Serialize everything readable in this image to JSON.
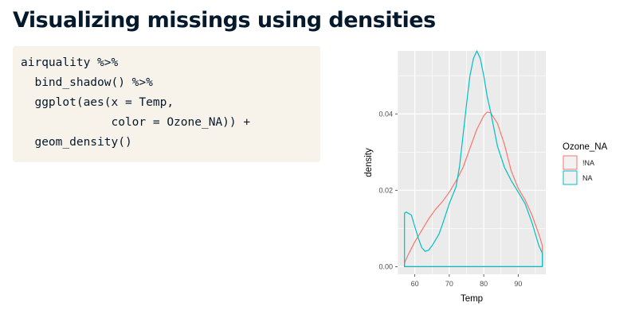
{
  "slide": {
    "title": "Visualizing missings using densities"
  },
  "code": {
    "lines": [
      "airquality %>%",
      "  bind_shadow() %>%",
      "  ggplot(aes(x = Temp,",
      "             color = Ozone_NA)) +",
      "  geom_density()"
    ]
  },
  "chart_data": {
    "type": "line",
    "xlabel": "Temp",
    "ylabel": "density",
    "xlim": [
      55,
      98
    ],
    "ylim": [
      -0.002,
      0.0565
    ],
    "x_ticks": [
      60,
      70,
      80,
      90
    ],
    "x_tick_labels": [
      "60",
      "70",
      "80",
      "90"
    ],
    "y_ticks": [
      0.0,
      0.02,
      0.04
    ],
    "y_tick_labels": [
      "0.00",
      "0.02",
      "0.04"
    ],
    "grid": true,
    "legend": {
      "title": "Ozone_NA",
      "position": "right"
    },
    "series": [
      {
        "name": "!NA",
        "color": "#f8766d",
        "x": [
          57,
          58,
          60,
          62,
          64,
          66,
          68,
          70,
          72,
          74,
          76,
          78,
          80,
          81,
          82,
          84,
          86,
          88,
          90,
          92,
          94,
          96,
          97
        ],
        "y": [
          0.001,
          0.003,
          0.0065,
          0.0095,
          0.0125,
          0.015,
          0.017,
          0.0195,
          0.0225,
          0.026,
          0.031,
          0.036,
          0.0395,
          0.0405,
          0.0403,
          0.0375,
          0.032,
          0.025,
          0.0205,
          0.0175,
          0.0135,
          0.0085,
          0.0055
        ]
      },
      {
        "name": "NA",
        "color": "#00bfc4",
        "x": [
          57,
          57.5,
          59,
          60,
          61,
          62,
          63,
          64,
          65,
          66,
          67,
          68,
          70,
          72,
          73,
          74,
          75,
          76,
          77,
          78,
          79,
          80,
          81,
          82,
          83,
          84,
          86,
          88,
          90,
          92,
          94,
          96,
          97
        ],
        "y": [
          0.014,
          0.0143,
          0.0135,
          0.0105,
          0.0075,
          0.005,
          0.004,
          0.0043,
          0.0055,
          0.007,
          0.0085,
          0.011,
          0.0165,
          0.021,
          0.0265,
          0.0345,
          0.0425,
          0.05,
          0.0545,
          0.0565,
          0.0545,
          0.05,
          0.0445,
          0.0405,
          0.036,
          0.0315,
          0.026,
          0.0225,
          0.0195,
          0.0165,
          0.0115,
          0.0055,
          0.0035
        ]
      }
    ]
  }
}
